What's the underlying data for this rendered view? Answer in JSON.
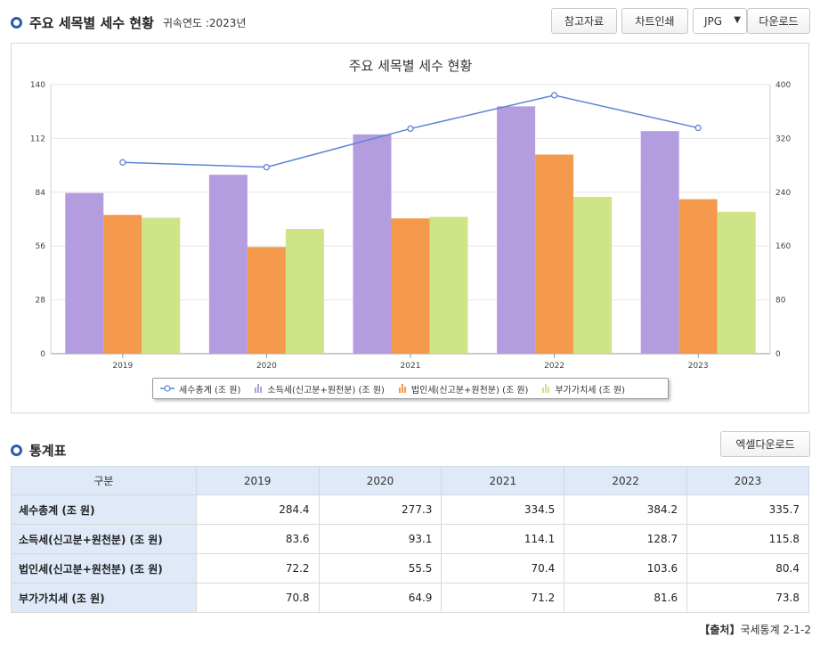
{
  "header": {
    "title": "주요 세목별 세수 현황",
    "subtitle": "귀속연도 :2023년"
  },
  "toolbar": {
    "reference_label": "참고자료",
    "print_label": "차트인쇄",
    "format_value": "JPG",
    "download_label": "다운로드"
  },
  "stats": {
    "title": "통계표",
    "excel_label": "엑셀다운로드",
    "corner": "구분",
    "columns": [
      "2019",
      "2020",
      "2021",
      "2022",
      "2023"
    ],
    "rows": [
      {
        "label": "세수총계 (조 원)",
        "values": [
          "284.4",
          "277.3",
          "334.5",
          "384.2",
          "335.7"
        ]
      },
      {
        "label": "소득세(신고분+원천분) (조 원)",
        "values": [
          "83.6",
          "93.1",
          "114.1",
          "128.7",
          "115.8"
        ]
      },
      {
        "label": "법인세(신고분+원천분) (조 원)",
        "values": [
          "72.2",
          "55.5",
          "70.4",
          "103.6",
          "80.4"
        ]
      },
      {
        "label": "부가가치세 (조 원)",
        "values": [
          "70.8",
          "64.9",
          "71.2",
          "81.6",
          "73.8"
        ]
      }
    ]
  },
  "source": {
    "prefix": "【출처】",
    "text": "국세통계 2-1-2"
  },
  "chart_data": {
    "type": "bar",
    "title": "주요 세목별 세수 현황",
    "categories": [
      "2019",
      "2020",
      "2021",
      "2022",
      "2023"
    ],
    "ylim": [
      0,
      140
    ],
    "y2lim": [
      0,
      400
    ],
    "yticks": [
      "0",
      "28",
      "56",
      "84",
      "112",
      "140"
    ],
    "y2ticks": [
      "0",
      "80",
      "160",
      "240",
      "320",
      "400"
    ],
    "grid": true,
    "legend_position": "bottom",
    "series": [
      {
        "name": "세수총계 (조 원)",
        "kind": "line",
        "axis": "right",
        "color": "#5b85d6",
        "values": [
          284.4,
          277.3,
          334.5,
          384.2,
          335.7
        ]
      },
      {
        "name": "소득세(신고분+원천분) (조 원)",
        "kind": "bar",
        "axis": "left",
        "color": "#b39ddf",
        "values": [
          83.6,
          93.1,
          114.1,
          128.7,
          115.8
        ]
      },
      {
        "name": "법인세(신고분+원천분) (조 원)",
        "kind": "bar",
        "axis": "left",
        "color": "#f5994d",
        "values": [
          72.2,
          55.5,
          70.4,
          103.6,
          80.4
        ]
      },
      {
        "name": "부가가치세 (조 원)",
        "kind": "bar",
        "axis": "left",
        "color": "#cfe387",
        "values": [
          70.8,
          64.9,
          71.2,
          81.6,
          73.8
        ]
      }
    ]
  }
}
